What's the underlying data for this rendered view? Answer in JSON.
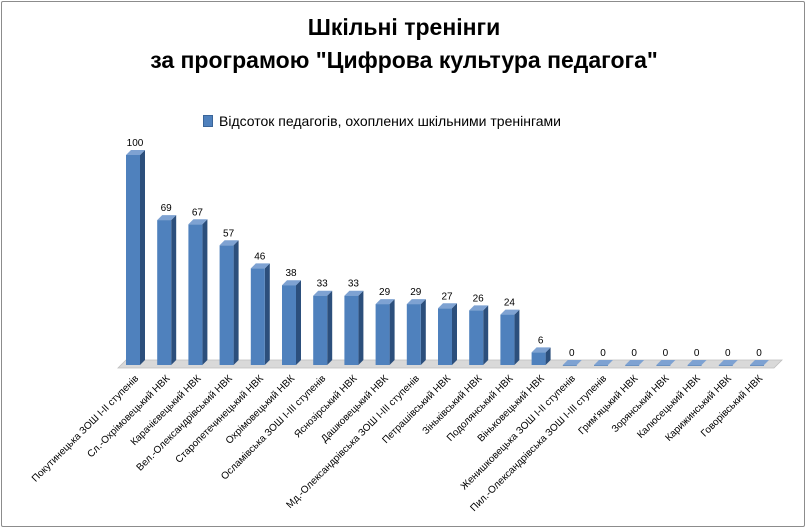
{
  "chart_data": {
    "type": "bar",
    "title_line1": "Шкільні тренінги",
    "title_line2": "за програмою \"Цифрова культура педагога\"",
    "legend": [
      "Відсоток педагогів, охоплених шкільними тренінгами"
    ],
    "legend_position": "top",
    "grid": false,
    "three_d": true,
    "colors": {
      "bar_front": "#4f81bd",
      "bar_side": "#2c4f7c",
      "bar_top": "#7ea2d2",
      "floor": "#d9d9d9"
    },
    "categories": [
      "Покутинецька ЗОШ І-ІІ ступенів",
      "Сл.-Охрімовецький НВК",
      "Карачієвецький НВК",
      "Вел.-Олександрівський НВК",
      "Старопетечинецький НВК",
      "Охрімовецький НВК",
      "Осламівська ЗОШ І-ІІІ ступенів",
      "Яснозірський НВК",
      "Дашковецький НВК",
      "Мд.-Олександрівська ЗОШ І-ІІІ ступенів",
      "Петрашівський НВК",
      "Зіньківський НВК",
      "Подолянський НВК",
      "Віньковецький НВК",
      "Женишковецька ЗОШ І-ІІ ступенів",
      "Пил.-Олександрівська ЗОШ І-ІІІ ступенів",
      "Грим'яцький НВК",
      "Зорянський НВК",
      "Калюсецький НВК",
      "Карижинський НВК",
      "Говорівський НВК"
    ],
    "series": [
      {
        "name": "Відсоток педагогів, охоплених шкільними тренінгами",
        "values": [
          100,
          69,
          67,
          57,
          46,
          38,
          33,
          33,
          29,
          29,
          27,
          26,
          24,
          6,
          0,
          0,
          0,
          0,
          0,
          0,
          0
        ]
      }
    ],
    "ylim": [
      0,
      100
    ]
  }
}
